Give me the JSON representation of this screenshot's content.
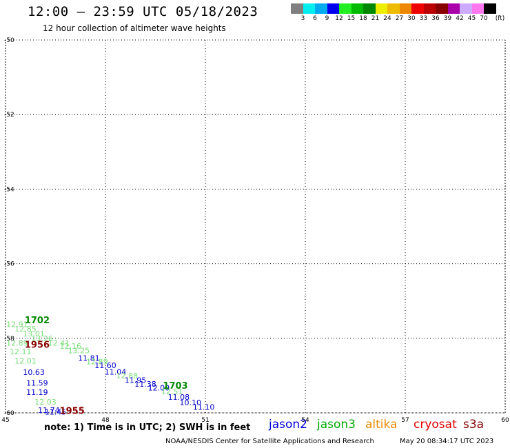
{
  "header": {
    "title": "12:00 – 23:59 UTC 05/18/2023",
    "subtitle": "12 hour collection of altimeter wave heights"
  },
  "colorbar": {
    "colors": [
      "#808080",
      "#00eeee",
      "#00aaee",
      "#0000ee",
      "#22ee22",
      "#00bb00",
      "#008800",
      "#eeee00",
      "#eebb00",
      "#ee8800",
      "#ee0000",
      "#bb0000",
      "#880000",
      "#aa00aa",
      "#ccaaff",
      "#ff77ee",
      "#000000"
    ],
    "labels": [
      "3",
      "6",
      "9",
      "12",
      "15",
      "18",
      "21",
      "24",
      "27",
      "30",
      "33",
      "36",
      "39",
      "42",
      "45",
      "70"
    ],
    "unit": "(ft)"
  },
  "map": {
    "lat_ticks": [
      "-50",
      "-52",
      "-54",
      "-56",
      "-58",
      "-60"
    ],
    "lon_ticks": [
      "45",
      "48",
      "51",
      "54",
      "57",
      "60"
    ],
    "lat_range": [
      -60,
      -50
    ],
    "lon_range": [
      45,
      60
    ]
  },
  "observations": [
    {
      "v": "12.91",
      "c": "#77dd77",
      "lon": 45.35,
      "lat": -57.7
    },
    {
      "v": "12.85",
      "c": "#77dd77",
      "lon": 45.6,
      "lat": -57.82
    },
    {
      "v": "13.01",
      "c": "#77dd77",
      "lon": 45.85,
      "lat": -57.95
    },
    {
      "v": "13.26",
      "c": "#77dd77",
      "lon": 46.1,
      "lat": -58.08
    },
    {
      "v": "12.41",
      "c": "#77dd77",
      "lon": 46.6,
      "lat": -58.2
    },
    {
      "v": "12.16",
      "c": "#77dd77",
      "lon": 46.95,
      "lat": -58.28
    },
    {
      "v": "12.89",
      "c": "#77dd77",
      "lon": 45.35,
      "lat": -58.2
    },
    {
      "v": "12.11",
      "c": "#77dd77",
      "lon": 45.45,
      "lat": -58.43
    },
    {
      "v": "12.01",
      "c": "#77dd77",
      "lon": 45.6,
      "lat": -58.68
    },
    {
      "v": "13.25",
      "c": "#77dd77",
      "lon": 47.2,
      "lat": -58.4
    },
    {
      "v": "11.81",
      "c": "#0000cc",
      "lon": 47.5,
      "lat": -58.6
    },
    {
      "v": "12.89",
      "c": "#77dd77",
      "lon": 47.75,
      "lat": -58.7
    },
    {
      "v": "11.60",
      "c": "#0000cc",
      "lon": 48.0,
      "lat": -58.8
    },
    {
      "v": "11.04",
      "c": "#0000cc",
      "lon": 48.3,
      "lat": -58.97
    },
    {
      "v": "12.88",
      "c": "#77dd77",
      "lon": 48.65,
      "lat": -59.08
    },
    {
      "v": "11.95",
      "c": "#0000cc",
      "lon": 48.9,
      "lat": -59.2
    },
    {
      "v": "11.38",
      "c": "#0000cc",
      "lon": 49.2,
      "lat": -59.3
    },
    {
      "v": "12.00",
      "c": "#0000cc",
      "lon": 49.6,
      "lat": -59.4
    },
    {
      "v": "12.51",
      "c": "#77dd77",
      "lon": 50.0,
      "lat": -59.5
    },
    {
      "v": "11.08",
      "c": "#0000cc",
      "lon": 50.2,
      "lat": -59.65
    },
    {
      "v": "10.10",
      "c": "#0000cc",
      "lon": 50.55,
      "lat": -59.8
    },
    {
      "v": "11.10",
      "c": "#0000cc",
      "lon": 50.95,
      "lat": -59.92
    },
    {
      "v": "10.63",
      "c": "#0000cc",
      "lon": 45.85,
      "lat": -58.98
    },
    {
      "v": "11.59",
      "c": "#0000cc",
      "lon": 45.95,
      "lat": -59.27
    },
    {
      "v": "11.19",
      "c": "#0000cc",
      "lon": 45.95,
      "lat": -59.52
    },
    {
      "v": "12.03",
      "c": "#77dd77",
      "lon": 46.2,
      "lat": -59.78
    },
    {
      "v": "11.74",
      "c": "#0000cc",
      "lon": 46.3,
      "lat": -60.0
    },
    {
      "v": "11.45",
      "c": "#0000cc",
      "lon": 46.5,
      "lat": -60.05
    }
  ],
  "times": [
    {
      "v": "1702",
      "c": "#008800",
      "lon": 45.95,
      "lat": -57.6
    },
    {
      "v": "1956",
      "c": "#880000",
      "lon": 45.95,
      "lat": -58.25
    },
    {
      "v": "1703",
      "c": "#008800",
      "lon": 50.1,
      "lat": -59.35
    },
    {
      "v": "1955",
      "c": "#880000",
      "lon": 47.0,
      "lat": -60.03
    }
  ],
  "note": "note:  1) Time is in UTC;  2) SWH is in feet",
  "satellites": [
    {
      "name": "jason2",
      "color": "#0000dd"
    },
    {
      "name": "jason3",
      "color": "#00aa00"
    },
    {
      "name": "altika",
      "color": "#ee8800"
    },
    {
      "name": "cryosat",
      "color": "#dd0000"
    },
    {
      "name": "s3a",
      "color": "#880000"
    }
  ],
  "footer": {
    "source": "NOAA/NESDIS Center for Satellite Applications and Research",
    "timestamp": "May 20 08:34:17 UTC 2023"
  }
}
